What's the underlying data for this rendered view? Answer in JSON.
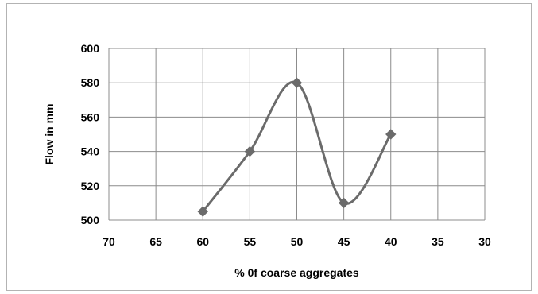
{
  "chart_data": {
    "type": "line",
    "title": "",
    "xlabel": "% 0f coarse aggregates",
    "ylabel": "Flow in mm",
    "x_reversed": true,
    "xlim": [
      30,
      70
    ],
    "ylim": [
      500,
      600
    ],
    "x_ticks": [
      70,
      65,
      60,
      55,
      50,
      45,
      40,
      35,
      30
    ],
    "y_ticks": [
      500,
      520,
      540,
      560,
      580,
      600
    ],
    "grid": true,
    "legend": "none",
    "smooth": true,
    "series": [
      {
        "name": "",
        "x": [
          60,
          55,
          50,
          45,
          40
        ],
        "y": [
          505,
          540,
          580,
          510,
          550
        ],
        "color": "#6b6b6b",
        "marker": "diamond"
      }
    ]
  }
}
